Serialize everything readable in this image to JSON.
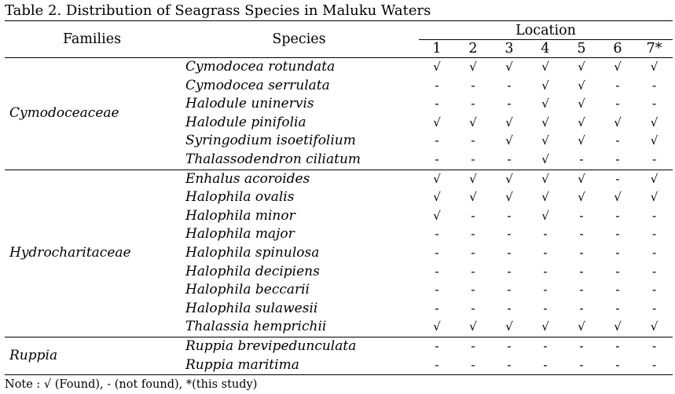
{
  "caption": "Table 2. Distribution of Seagrass Species in Maluku Waters",
  "header": {
    "families": "Families",
    "species": "Species",
    "location": "Location",
    "locations": [
      "1",
      "2",
      "3",
      "4",
      "5",
      "6",
      "7*"
    ]
  },
  "groups": [
    {
      "family": "Cymodoceaceae",
      "rows": [
        {
          "species": "Cymodocea rotundata",
          "marks": [
            "√",
            "√",
            "√",
            "√",
            "√",
            "√",
            "√"
          ]
        },
        {
          "species": "Cymodocea serrulata",
          "marks": [
            "-",
            "-",
            "-",
            "√",
            "√",
            "-",
            "-"
          ]
        },
        {
          "species": "Halodule uninervis",
          "marks": [
            "-",
            "-",
            "-",
            "√",
            "√",
            "-",
            "-"
          ]
        },
        {
          "species": "Halodule pinifolia",
          "marks": [
            "√",
            "√",
            "√",
            "√",
            "√",
            "√",
            "√"
          ]
        },
        {
          "species": "Syringodium isoetifolium",
          "marks": [
            "-",
            "-",
            "√",
            "√",
            "√",
            "-",
            "√"
          ]
        },
        {
          "species": "Thalassodendron ciliatum",
          "marks": [
            "-",
            "-",
            "-",
            "√",
            "-",
            "-",
            "-"
          ]
        }
      ]
    },
    {
      "family": "Hydrocharitaceae",
      "rows": [
        {
          "species": "Enhalus acoroides",
          "marks": [
            "√",
            "√",
            "√",
            "√",
            "√",
            "-",
            "√"
          ]
        },
        {
          "species": "Halophila ovalis",
          "marks": [
            "√",
            "√",
            "√",
            "√",
            "√",
            "√",
            "√"
          ]
        },
        {
          "species": "Halophila minor",
          "marks": [
            "√",
            "-",
            "-",
            "√",
            "-",
            "-",
            "-"
          ]
        },
        {
          "species": "Halophila major",
          "marks": [
            "-",
            "-",
            "-",
            "-",
            "-",
            "-",
            "-"
          ]
        },
        {
          "species": "Halophila spinulosa",
          "marks": [
            "-",
            "-",
            "-",
            "-",
            "-",
            "-",
            "-"
          ]
        },
        {
          "species": "Halophila decipiens",
          "marks": [
            "-",
            "-",
            "-",
            "-",
            "-",
            "-",
            "-"
          ]
        },
        {
          "species": "Halophila beccarii",
          "marks": [
            "-",
            "-",
            "-",
            "-",
            "-",
            "-",
            "-"
          ]
        },
        {
          "species": "Halophila sulawesii",
          "marks": [
            "-",
            "-",
            "-",
            "-",
            "-",
            "-",
            "-"
          ]
        },
        {
          "species": "Thalassia hemprichii",
          "marks": [
            "√",
            "√",
            "√",
            "√",
            "√",
            "√",
            "√"
          ]
        }
      ]
    },
    {
      "family": "Ruppia",
      "rows": [
        {
          "species": "Ruppia brevipedunculata",
          "marks": [
            "-",
            "-",
            "-",
            "-",
            "-",
            "-",
            "-"
          ]
        },
        {
          "species": "Ruppia maritima",
          "marks": [
            "-",
            "-",
            "-",
            "-",
            "-",
            "-",
            "-"
          ]
        }
      ]
    }
  ],
  "note": "Note : √ (Found), - (not found), *(this study)"
}
